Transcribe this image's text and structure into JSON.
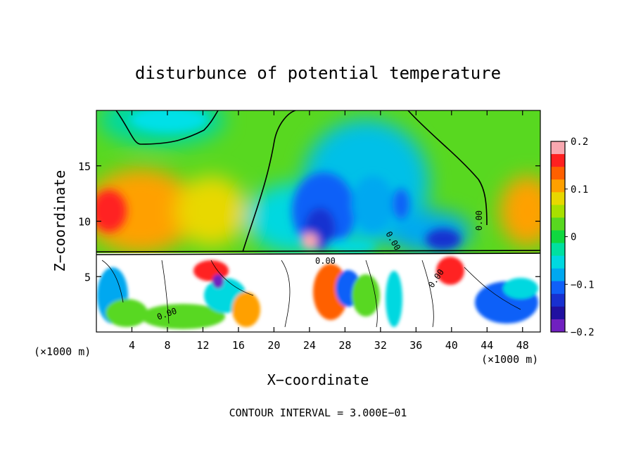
{
  "chart_data": {
    "type": "heatmap",
    "title": "disturbunce of potential temperature",
    "xlabel": "X−coordinate",
    "ylabel": "Z−coordinate",
    "x_unit_left": "(×1000 m)",
    "x_unit_right": "(×1000 m)",
    "x_ticks": [
      4,
      8,
      12,
      16,
      20,
      24,
      28,
      32,
      36,
      40,
      44,
      48
    ],
    "y_ticks": [
      5,
      10,
      15
    ],
    "xlim": [
      0,
      50
    ],
    "ylim": [
      0,
      20
    ],
    "colorbar": {
      "range": [
        -0.2,
        0.2
      ],
      "tick_labels": [
        "0.2",
        "0.1",
        "0",
        "−0.1",
        "−0.2"
      ],
      "tick_values": [
        0.2,
        0.1,
        0,
        -0.1,
        -0.2
      ],
      "colors": [
        "#f8a8b0",
        "#ff2020",
        "#ff6000",
        "#ffa000",
        "#e8d800",
        "#a8e000",
        "#58d820",
        "#10d840",
        "#00e0a0",
        "#00d8e0",
        "#00a8f0",
        "#1060f8",
        "#1830d0",
        "#2010a0",
        "#7020c0"
      ]
    },
    "contour_labels": [
      "0.00",
      "0.00",
      "0.00",
      "0.00",
      "0.00"
    ],
    "footer": "CONTOUR INTERVAL = 3.000E−01"
  }
}
